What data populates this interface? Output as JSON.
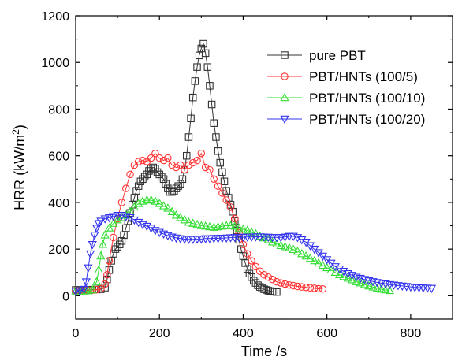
{
  "chart_data": {
    "type": "line",
    "title": "",
    "xlabel": "Time /s",
    "ylabel_main": "HRR (kW/m",
    "ylabel_sup": "2",
    "ylabel_end": ")",
    "xlim": [
      0,
      900
    ],
    "ylim": [
      -100,
      1200
    ],
    "x_ticks": [
      0,
      200,
      400,
      600,
      800
    ],
    "y_ticks": [
      0,
      200,
      400,
      600,
      800,
      1000,
      1200
    ],
    "grid": false,
    "legend_position": "top-right",
    "series": [
      {
        "name": "pure PBT",
        "color": "#333333",
        "marker": "square",
        "points": [
          [
            0,
            25
          ],
          [
            10,
            25
          ],
          [
            20,
            25
          ],
          [
            30,
            25
          ],
          [
            40,
            26
          ],
          [
            50,
            27
          ],
          [
            60,
            28
          ],
          [
            70,
            35
          ],
          [
            75,
            70
          ],
          [
            80,
            110
          ],
          [
            85,
            150
          ],
          [
            90,
            180
          ],
          [
            95,
            200
          ],
          [
            100,
            210
          ],
          [
            105,
            220
          ],
          [
            110,
            235
          ],
          [
            115,
            260
          ],
          [
            120,
            290
          ],
          [
            125,
            320
          ],
          [
            130,
            355
          ],
          [
            135,
            390
          ],
          [
            140,
            420
          ],
          [
            145,
            450
          ],
          [
            150,
            470
          ],
          [
            155,
            490
          ],
          [
            160,
            500
          ],
          [
            165,
            510
          ],
          [
            170,
            520
          ],
          [
            175,
            535
          ],
          [
            180,
            545
          ],
          [
            185,
            550
          ],
          [
            190,
            545
          ],
          [
            195,
            530
          ],
          [
            200,
            520
          ],
          [
            205,
            510
          ],
          [
            210,
            500
          ],
          [
            215,
            480
          ],
          [
            220,
            460
          ],
          [
            225,
            445
          ],
          [
            230,
            445
          ],
          [
            235,
            450
          ],
          [
            240,
            460
          ],
          [
            245,
            470
          ],
          [
            250,
            480
          ],
          [
            255,
            500
          ],
          [
            260,
            540
          ],
          [
            265,
            600
          ],
          [
            270,
            680
          ],
          [
            275,
            760
          ],
          [
            280,
            850
          ],
          [
            285,
            920
          ],
          [
            290,
            980
          ],
          [
            295,
            1030
          ],
          [
            300,
            1060
          ],
          [
            305,
            1080
          ],
          [
            310,
            1040
          ],
          [
            315,
            980
          ],
          [
            320,
            900
          ],
          [
            325,
            820
          ],
          [
            330,
            740
          ],
          [
            335,
            680
          ],
          [
            340,
            620
          ],
          [
            345,
            570
          ],
          [
            350,
            530
          ],
          [
            355,
            490
          ],
          [
            360,
            450
          ],
          [
            365,
            420
          ],
          [
            370,
            390
          ],
          [
            375,
            360
          ],
          [
            380,
            320
          ],
          [
            385,
            280
          ],
          [
            390,
            240
          ],
          [
            395,
            200
          ],
          [
            400,
            170
          ],
          [
            405,
            140
          ],
          [
            410,
            115
          ],
          [
            415,
            95
          ],
          [
            420,
            80
          ],
          [
            425,
            65
          ],
          [
            430,
            55
          ],
          [
            435,
            45
          ],
          [
            440,
            38
          ],
          [
            445,
            32
          ],
          [
            450,
            28
          ],
          [
            455,
            25
          ],
          [
            460,
            22
          ],
          [
            465,
            20
          ],
          [
            470,
            18
          ],
          [
            475,
            17
          ],
          [
            480,
            16
          ]
        ]
      },
      {
        "name": "PBT/HNTs (100/5)",
        "color": "#ff3333",
        "marker": "circle",
        "points": [
          [
            0,
            22
          ],
          [
            10,
            22
          ],
          [
            20,
            22
          ],
          [
            30,
            23
          ],
          [
            40,
            24
          ],
          [
            50,
            26
          ],
          [
            60,
            30
          ],
          [
            70,
            50
          ],
          [
            75,
            90
          ],
          [
            80,
            150
          ],
          [
            90,
            250
          ],
          [
            100,
            330
          ],
          [
            110,
            400
          ],
          [
            120,
            460
          ],
          [
            130,
            520
          ],
          [
            140,
            560
          ],
          [
            150,
            575
          ],
          [
            160,
            580
          ],
          [
            170,
            575
          ],
          [
            180,
            590
          ],
          [
            190,
            610
          ],
          [
            200,
            590
          ],
          [
            210,
            580
          ],
          [
            220,
            590
          ],
          [
            230,
            560
          ],
          [
            240,
            550
          ],
          [
            250,
            560
          ],
          [
            260,
            540
          ],
          [
            270,
            560
          ],
          [
            280,
            570
          ],
          [
            290,
            580
          ],
          [
            300,
            610
          ],
          [
            310,
            550
          ],
          [
            320,
            540
          ],
          [
            330,
            500
          ],
          [
            340,
            470
          ],
          [
            350,
            440
          ],
          [
            360,
            410
          ],
          [
            370,
            380
          ],
          [
            380,
            330
          ],
          [
            390,
            270
          ],
          [
            400,
            220
          ],
          [
            410,
            180
          ],
          [
            420,
            150
          ],
          [
            430,
            125
          ],
          [
            440,
            105
          ],
          [
            450,
            90
          ],
          [
            460,
            80
          ],
          [
            470,
            70
          ],
          [
            480,
            60
          ],
          [
            490,
            55
          ],
          [
            500,
            50
          ],
          [
            510,
            46
          ],
          [
            520,
            43
          ],
          [
            530,
            40
          ],
          [
            540,
            38
          ],
          [
            550,
            36
          ],
          [
            560,
            34
          ],
          [
            570,
            32
          ],
          [
            580,
            30
          ],
          [
            590,
            29
          ]
        ]
      },
      {
        "name": "PBT/HNTs (100/10)",
        "color": "#33dd33",
        "marker": "triangle-up",
        "points": [
          [
            0,
            20
          ],
          [
            10,
            20
          ],
          [
            20,
            20
          ],
          [
            30,
            21
          ],
          [
            40,
            25
          ],
          [
            50,
            60
          ],
          [
            55,
            110
          ],
          [
            60,
            170
          ],
          [
            65,
            220
          ],
          [
            70,
            260
          ],
          [
            80,
            290
          ],
          [
            90,
            310
          ],
          [
            100,
            325
          ],
          [
            110,
            335
          ],
          [
            120,
            345
          ],
          [
            130,
            360
          ],
          [
            140,
            380
          ],
          [
            150,
            395
          ],
          [
            160,
            405
          ],
          [
            170,
            410
          ],
          [
            180,
            410
          ],
          [
            190,
            405
          ],
          [
            200,
            395
          ],
          [
            210,
            385
          ],
          [
            220,
            375
          ],
          [
            230,
            360
          ],
          [
            240,
            345
          ],
          [
            250,
            335
          ],
          [
            260,
            325
          ],
          [
            270,
            315
          ],
          [
            280,
            310
          ],
          [
            290,
            305
          ],
          [
            300,
            300
          ],
          [
            310,
            298
          ],
          [
            320,
            295
          ],
          [
            330,
            293
          ],
          [
            340,
            295
          ],
          [
            350,
            298
          ],
          [
            360,
            300
          ],
          [
            370,
            300
          ],
          [
            380,
            298
          ],
          [
            390,
            290
          ],
          [
            400,
            285
          ],
          [
            410,
            280
          ],
          [
            420,
            272
          ],
          [
            430,
            265
          ],
          [
            440,
            255
          ],
          [
            450,
            248
          ],
          [
            460,
            240
          ],
          [
            470,
            230
          ],
          [
            480,
            222
          ],
          [
            490,
            215
          ],
          [
            500,
            210
          ],
          [
            510,
            205
          ],
          [
            520,
            198
          ],
          [
            530,
            190
          ],
          [
            540,
            180
          ],
          [
            550,
            170
          ],
          [
            560,
            160
          ],
          [
            570,
            150
          ],
          [
            580,
            140
          ],
          [
            590,
            130
          ],
          [
            600,
            120
          ],
          [
            610,
            110
          ],
          [
            620,
            100
          ],
          [
            630,
            90
          ],
          [
            640,
            82
          ],
          [
            650,
            75
          ],
          [
            660,
            68
          ],
          [
            670,
            60
          ],
          [
            680,
            55
          ],
          [
            690,
            48
          ],
          [
            700,
            42
          ],
          [
            710,
            37
          ],
          [
            720,
            32
          ],
          [
            730,
            28
          ],
          [
            740,
            25
          ],
          [
            750,
            22
          ]
        ]
      },
      {
        "name": "PBT/HNTs (100/20)",
        "color": "#3333ee",
        "marker": "triangle-down",
        "points": [
          [
            0,
            20
          ],
          [
            10,
            22
          ],
          [
            20,
            28
          ],
          [
            25,
            60
          ],
          [
            30,
            120
          ],
          [
            35,
            180
          ],
          [
            40,
            220
          ],
          [
            45,
            260
          ],
          [
            50,
            290
          ],
          [
            55,
            310
          ],
          [
            60,
            320
          ],
          [
            70,
            330
          ],
          [
            80,
            335
          ],
          [
            90,
            340
          ],
          [
            100,
            345
          ],
          [
            110,
            345
          ],
          [
            120,
            340
          ],
          [
            130,
            335
          ],
          [
            140,
            325
          ],
          [
            150,
            315
          ],
          [
            160,
            305
          ],
          [
            170,
            298
          ],
          [
            180,
            290
          ],
          [
            190,
            280
          ],
          [
            200,
            272
          ],
          [
            210,
            265
          ],
          [
            220,
            258
          ],
          [
            230,
            252
          ],
          [
            240,
            248
          ],
          [
            250,
            245
          ],
          [
            260,
            243
          ],
          [
            270,
            242
          ],
          [
            280,
            242
          ],
          [
            290,
            243
          ],
          [
            300,
            243
          ],
          [
            310,
            245
          ],
          [
            320,
            245
          ],
          [
            330,
            246
          ],
          [
            340,
            246
          ],
          [
            350,
            247
          ],
          [
            360,
            248
          ],
          [
            370,
            249
          ],
          [
            380,
            250
          ],
          [
            390,
            250
          ],
          [
            400,
            251
          ],
          [
            410,
            252
          ],
          [
            420,
            252
          ],
          [
            430,
            253
          ],
          [
            440,
            253
          ],
          [
            450,
            252
          ],
          [
            460,
            251
          ],
          [
            470,
            250
          ],
          [
            480,
            250
          ],
          [
            490,
            250
          ],
          [
            500,
            252
          ],
          [
            510,
            255
          ],
          [
            520,
            255
          ],
          [
            530,
            250
          ],
          [
            540,
            240
          ],
          [
            550,
            230
          ],
          [
            560,
            215
          ],
          [
            570,
            200
          ],
          [
            580,
            185
          ],
          [
            590,
            170
          ],
          [
            600,
            155
          ],
          [
            610,
            140
          ],
          [
            620,
            125
          ],
          [
            630,
            115
          ],
          [
            640,
            105
          ],
          [
            650,
            95
          ],
          [
            660,
            88
          ],
          [
            670,
            80
          ],
          [
            680,
            75
          ],
          [
            690,
            70
          ],
          [
            700,
            65
          ],
          [
            710,
            61
          ],
          [
            720,
            57
          ],
          [
            730,
            54
          ],
          [
            740,
            51
          ],
          [
            750,
            48
          ],
          [
            760,
            46
          ],
          [
            770,
            44
          ],
          [
            780,
            42
          ],
          [
            790,
            40
          ],
          [
            800,
            38
          ],
          [
            810,
            36
          ],
          [
            820,
            35
          ],
          [
            830,
            34
          ],
          [
            840,
            33
          ],
          [
            850,
            32
          ]
        ]
      }
    ]
  }
}
